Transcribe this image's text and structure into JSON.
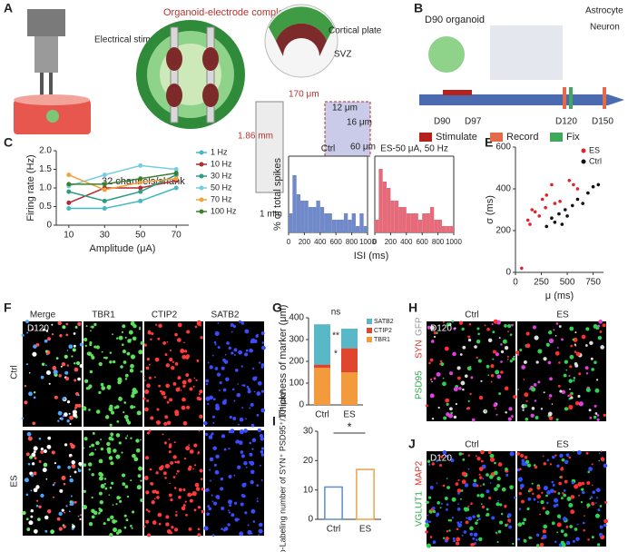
{
  "panel_labels": [
    "A",
    "B",
    "C",
    "D",
    "E",
    "F",
    "G",
    "H",
    "I",
    "J"
  ],
  "panel_a": {
    "stimulation": "Electrical stimulation",
    "complex": "Organoid-electrode complex",
    "cortical_plate": "Cortical plate",
    "svz": "SVZ",
    "width": "170 μm",
    "length": "1.86 mm",
    "tip": "1 mm",
    "site": "12 μm",
    "pitch": "16 μm",
    "span": "60 μm",
    "channels": "32 channels/shank"
  },
  "panel_b": {
    "title": "D90 organoid",
    "cell_types": [
      "Astrocyte",
      "Neuron"
    ],
    "timepoints": [
      "D90",
      "D97",
      "D120",
      "D150"
    ],
    "legend": [
      "Stimulate",
      "Record",
      "Fix"
    ]
  },
  "panel_f": {
    "day": "D120",
    "columns": [
      "Merge",
      "TBR1",
      "CTIP2",
      "SATB2"
    ],
    "rows": [
      "Ctrl",
      "ES"
    ]
  },
  "panel_h": {
    "day": "D120",
    "columns": [
      "Ctrl",
      "ES"
    ],
    "stains": [
      "PSD95",
      "SYN",
      "GFP"
    ]
  },
  "panel_j": {
    "day": "D120",
    "columns": [
      "Ctrl",
      "ES"
    ],
    "stains": [
      "VGLUT1",
      "MAP2"
    ]
  },
  "chart_data": [
    {
      "type": "line",
      "ylabel": "Firing rate (Hz)",
      "xlabel": "Amplitude (μA)",
      "x": [
        10,
        30,
        50,
        70
      ],
      "xlim": [
        3,
        77
      ],
      "xticks": [
        10,
        30,
        50,
        70
      ],
      "ylim": [
        0,
        2
      ],
      "yticks": [
        0,
        0.5,
        {
          "value": 1,
          "label": "1.0"
        },
        1.5,
        {
          "value": 2,
          "label": "2.0"
        }
      ],
      "legend": "right",
      "series": [
        {
          "name": "1 Hz",
          "color": "#45b8c4",
          "values": [
            0.45,
            0.45,
            0.65,
            1.0
          ]
        },
        {
          "name": "10 Hz",
          "color": "#b52a2a",
          "values": [
            0.6,
            1.0,
            1.0,
            1.2
          ]
        },
        {
          "name": "30 Hz",
          "color": "#2a9d82",
          "values": [
            0.9,
            0.65,
            0.9,
            1.35
          ]
        },
        {
          "name": "50 Hz",
          "color": "#74cde0",
          "values": [
            1.05,
            1.35,
            1.6,
            1.5
          ]
        },
        {
          "name": "70 Hz",
          "color": "#f3a33c",
          "values": [
            1.35,
            0.95,
            1.15,
            1.25
          ]
        },
        {
          "name": "100 Hz",
          "color": "#3e7f2e",
          "values": [
            1.1,
            1.1,
            1.25,
            1.4
          ]
        }
      ]
    },
    {
      "type": "histogram",
      "title": "Ctrl",
      "ylabel": "% of total spikes",
      "xlabel": "ISI (ms)",
      "color": "#6f89c9",
      "bins": [
        0,
        50,
        100,
        150,
        200,
        250,
        300,
        350,
        400,
        450,
        500,
        550,
        600,
        650,
        700,
        750,
        800,
        850,
        900,
        950,
        1000
      ],
      "values": [
        3,
        9,
        6,
        5,
        5,
        4,
        4,
        5,
        4,
        3,
        3,
        2,
        2,
        2,
        3,
        2,
        3,
        1,
        3,
        1
      ],
      "xlim": [
        0,
        1000
      ],
      "xticks": [
        0,
        200,
        400,
        600,
        800,
        1000
      ],
      "ylim": [
        0,
        12
      ]
    },
    {
      "type": "histogram",
      "title": "ES-50 μA, 50 Hz",
      "color": "#e56b7a",
      "bins": [
        0,
        50,
        100,
        150,
        200,
        250,
        300,
        350,
        400,
        450,
        500,
        550,
        600,
        650,
        700,
        750,
        800,
        850,
        900,
        950,
        1000
      ],
      "values": [
        2,
        10,
        8,
        7,
        5,
        5,
        4,
        4,
        3,
        3,
        3,
        2,
        3,
        3,
        4,
        2,
        2,
        1,
        1,
        1
      ],
      "xlim": [
        0,
        1000
      ],
      "xticks": [
        0,
        200,
        400,
        600,
        800,
        1000
      ],
      "ylim": [
        0,
        12
      ]
    },
    {
      "type": "scatter",
      "xlabel": "μ (ms)",
      "ylabel": "σ (ms)",
      "xlim": [
        0,
        850
      ],
      "xticks": [
        0,
        250,
        500,
        750
      ],
      "ylim": [
        0,
        600
      ],
      "yticks": [
        0,
        200,
        400,
        600
      ],
      "legend": "top-right",
      "series": [
        {
          "name": "ES",
          "color": "#e0232b",
          "x": [
            60,
            120,
            140,
            160,
            190,
            230,
            260,
            290,
            300,
            350,
            380,
            430,
            520,
            560,
            600
          ],
          "values": [
            20,
            250,
            230,
            300,
            290,
            270,
            350,
            310,
            370,
            420,
            330,
            340,
            440,
            420,
            400
          ]
        },
        {
          "name": "Ctrl",
          "color": "#111111",
          "x": [
            300,
            350,
            380,
            420,
            450,
            480,
            500,
            550,
            600,
            650,
            700,
            750,
            800
          ],
          "values": [
            220,
            260,
            240,
            280,
            230,
            300,
            270,
            320,
            350,
            330,
            380,
            410,
            420
          ]
        }
      ]
    },
    {
      "type": "stacked_bar",
      "ylabel": "Thickness of marker (μm)",
      "categories": [
        "Ctrl",
        "ES"
      ],
      "ylim": [
        0,
        400
      ],
      "yticks": [
        0,
        100,
        200,
        300,
        400
      ],
      "annotations": [
        "ns",
        "**",
        "*"
      ],
      "series": [
        {
          "name": "TBR1",
          "color": "#f39a3c",
          "values": [
            170,
            150
          ]
        },
        {
          "name": "CTIP2",
          "color": "#e0462f",
          "values": [
            15,
            110
          ]
        },
        {
          "name": "SATB2",
          "color": "#58b8c7",
          "values": [
            185,
            90
          ]
        }
      ]
    },
    {
      "type": "bar",
      "ylabel": "Co-Labeling number of SYN⁺ PSD95⁺/10³ μm³",
      "categories": [
        "Ctrl",
        "ES"
      ],
      "values": [
        11,
        17
      ],
      "colors": [
        "#5b8fc9",
        "#f0a04b"
      ],
      "ylim": [
        0,
        30
      ],
      "yticks": [
        0,
        10,
        20,
        30
      ],
      "annotations": [
        "*"
      ]
    }
  ]
}
